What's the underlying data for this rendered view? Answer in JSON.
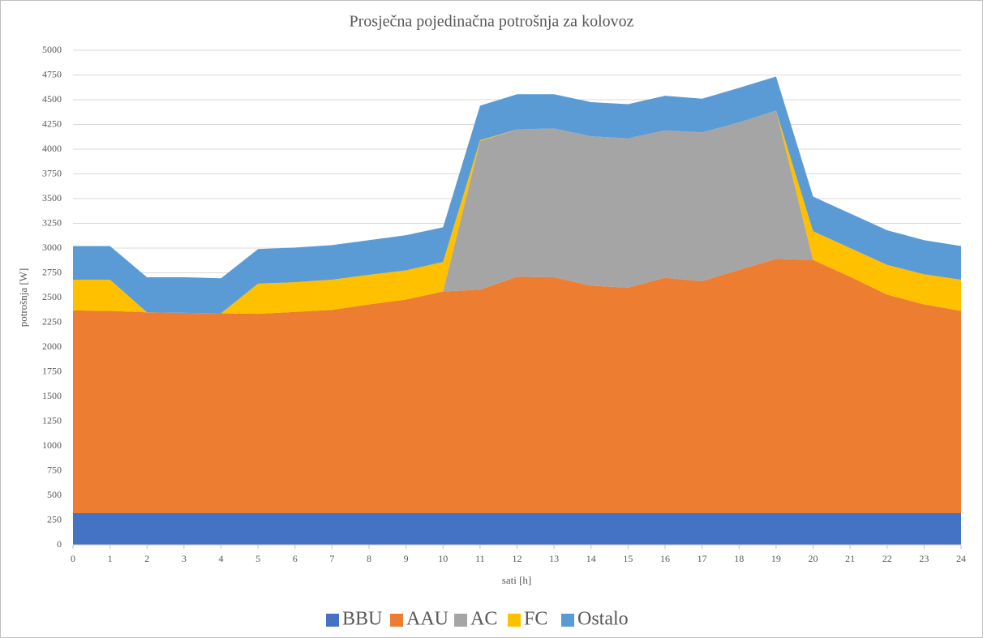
{
  "chart_data": {
    "type": "stacked_area",
    "title": "Prosječna pojedinačna potrošnja za kolovoz",
    "x_label": "sati [h]",
    "y_label": "potrošnja [W]",
    "x": [
      0,
      1,
      2,
      3,
      4,
      5,
      6,
      7,
      8,
      9,
      10,
      11,
      12,
      13,
      14,
      15,
      16,
      17,
      18,
      19,
      20,
      21,
      22,
      23,
      24
    ],
    "xlim": [
      0,
      24
    ],
    "xticks": [
      0,
      1,
      2,
      3,
      4,
      5,
      6,
      7,
      8,
      9,
      10,
      11,
      12,
      13,
      14,
      15,
      16,
      17,
      18,
      19,
      20,
      21,
      22,
      23,
      24
    ],
    "ylim": [
      0,
      5000
    ],
    "yticks": [
      0,
      250,
      500,
      750,
      1000,
      1250,
      1500,
      1750,
      2000,
      2250,
      2500,
      2750,
      3000,
      3250,
      3500,
      3750,
      4000,
      4250,
      4500,
      4750,
      5000
    ],
    "grid": true,
    "legend": "bottom",
    "series": [
      {
        "name": "BBU",
        "color": "#4472c4",
        "values": [
          320,
          320,
          320,
          320,
          320,
          320,
          320,
          320,
          320,
          320,
          320,
          320,
          320,
          320,
          320,
          320,
          320,
          320,
          320,
          320,
          320,
          320,
          320,
          320,
          320
        ]
      },
      {
        "name": "AAU",
        "color": "#ed7d31",
        "values": [
          2050,
          2045,
          2030,
          2025,
          2020,
          2015,
          2035,
          2055,
          2110,
          2160,
          2240,
          2260,
          2390,
          2385,
          2300,
          2280,
          2380,
          2345,
          2460,
          2570,
          2560,
          2390,
          2210,
          2110,
          2045
        ]
      },
      {
        "name": "AC",
        "color": "#a5a5a5",
        "values": [
          0,
          0,
          0,
          0,
          0,
          0,
          0,
          0,
          0,
          0,
          0,
          1500,
          1490,
          1505,
          1510,
          1510,
          1490,
          1505,
          1490,
          1500,
          0,
          0,
          0,
          0,
          0
        ]
      },
      {
        "name": "FC",
        "color": "#ffc000",
        "values": [
          310,
          315,
          0,
          0,
          0,
          305,
          300,
          305,
          300,
          295,
          300,
          10,
          0,
          0,
          0,
          0,
          0,
          0,
          0,
          0,
          290,
          290,
          300,
          305,
          315
        ]
      },
      {
        "name": "Ostalo",
        "color": "#5b9bd5",
        "values": [
          340,
          340,
          355,
          360,
          355,
          350,
          350,
          350,
          350,
          355,
          350,
          350,
          355,
          345,
          345,
          345,
          350,
          340,
          350,
          345,
          350,
          350,
          350,
          345,
          340
        ]
      }
    ]
  }
}
